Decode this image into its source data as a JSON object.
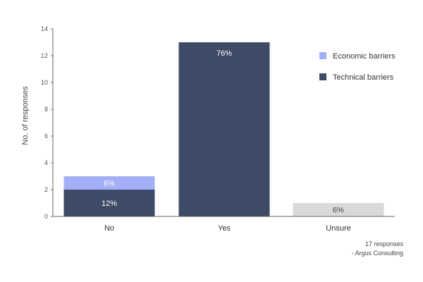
{
  "chart_data": {
    "type": "bar",
    "stacked": true,
    "ylabel": "No. of responses",
    "ylim": [
      0,
      14
    ],
    "yticks": [
      0,
      2,
      4,
      6,
      8,
      10,
      12,
      14
    ],
    "categories": [
      "No",
      "Yes",
      "Unsure"
    ],
    "series": [
      {
        "name": "Technical barriers",
        "color": "#3e4b66",
        "values": [
          2,
          13,
          null
        ],
        "labels": [
          "12%",
          "76%",
          null
        ]
      },
      {
        "name": "Economic barriers",
        "color": "#a4b0f6",
        "values": [
          1,
          null,
          null
        ],
        "labels": [
          "6%",
          null,
          null
        ]
      },
      {
        "color": "#d9d9d9",
        "values": [
          null,
          null,
          1
        ],
        "labels": [
          null,
          null,
          "6%"
        ]
      }
    ],
    "legend": {
      "placement": "top-right",
      "items": [
        {
          "label": "Economic barriers",
          "color": "#a4b0f6"
        },
        {
          "label": "Technical barriers",
          "color": "#3e4b66"
        }
      ]
    },
    "grid": false
  },
  "notes": {
    "responses": "17 responses",
    "source": "- Argus Consulting"
  }
}
